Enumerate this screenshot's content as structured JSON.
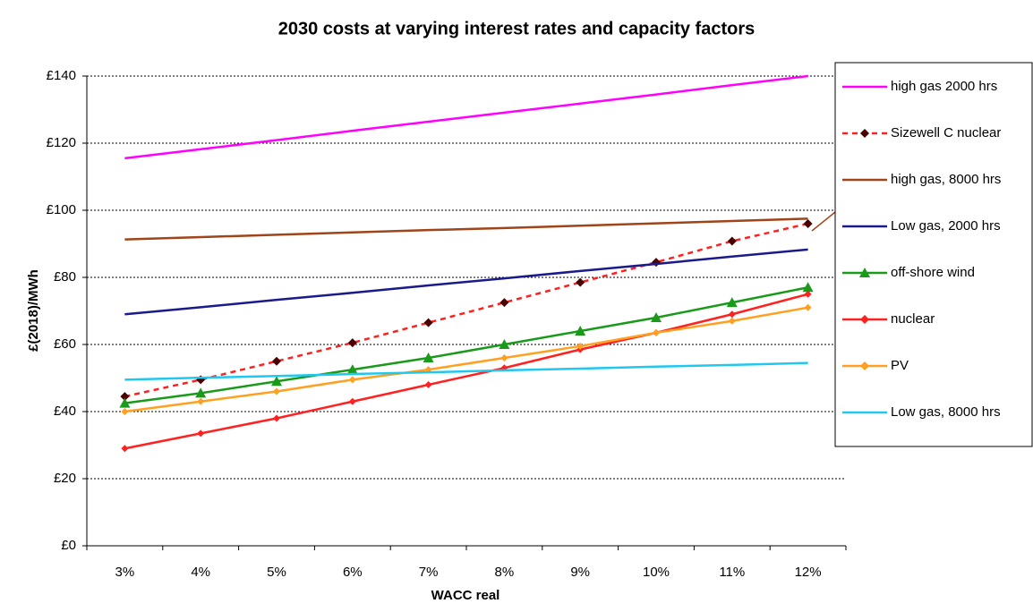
{
  "chart_data": {
    "type": "line",
    "title": "2030 costs at varying interest rates and capacity factors",
    "xlabel": "WACC real",
    "ylabel": "£(2018)/MWh",
    "categories": [
      "3%",
      "4%",
      "5%",
      "6%",
      "7%",
      "8%",
      "9%",
      "10%",
      "11%",
      "12%"
    ],
    "ylim": [
      0,
      140
    ],
    "yticks": [
      {
        "value": 0,
        "label": "£0"
      },
      {
        "value": 20,
        "label": "£20"
      },
      {
        "value": 40,
        "label": "£40"
      },
      {
        "value": 60,
        "label": "£60"
      },
      {
        "value": 80,
        "label": "£80"
      },
      {
        "value": 100,
        "label": "£100"
      },
      {
        "value": 120,
        "label": "£120"
      },
      {
        "value": 140,
        "label": "£140"
      }
    ],
    "grid": true,
    "legend": "right",
    "series": [
      {
        "name": "high gas 2000 hrs",
        "color": "#ff00ff",
        "marker": "none",
        "dash": "solid",
        "values": [
          115.5,
          118.2,
          120.9,
          123.7,
          126.4,
          129.1,
          131.8,
          134.5,
          137.3,
          140
        ]
      },
      {
        "name": "Sizewell C nuclear",
        "color": "#ff2020",
        "marker": "diamond",
        "marker_color": "#4a0000",
        "dash": "dashed",
        "values": [
          44.5,
          49.5,
          55,
          60.5,
          66.5,
          72.5,
          78.5,
          84.5,
          90.8,
          96
        ]
      },
      {
        "name": "high gas, 8000 hrs",
        "color": "#a0441a",
        "marker": "none",
        "dash": "solid",
        "values": [
          91.3,
          92,
          92.7,
          93.4,
          94.1,
          94.7,
          95.4,
          96.1,
          96.8,
          97.5
        ]
      },
      {
        "name": "Low gas, 2000 hrs",
        "color": "#1a1a8c",
        "marker": "none",
        "dash": "solid",
        "values": [
          69,
          71.1,
          73.3,
          75.4,
          77.6,
          79.7,
          81.9,
          84,
          86.2,
          88.3
        ]
      },
      {
        "name": "off-shore wind",
        "color": "#1a9a1a",
        "marker": "triangle",
        "marker_color": "#1a9a1a",
        "dash": "solid",
        "values": [
          42.5,
          45.5,
          49,
          52.5,
          56,
          60,
          64,
          68,
          72.5,
          77
        ]
      },
      {
        "name": "nuclear",
        "color": "#ff2020",
        "marker": "small",
        "marker_color": "#ff2020",
        "dash": "solid",
        "values": [
          29,
          33.5,
          38,
          43,
          48,
          53,
          58.5,
          63.5,
          69,
          75
        ]
      },
      {
        "name": "PV",
        "color": "#ffa020",
        "marker": "small",
        "marker_color": "#ffa020",
        "dash": "solid",
        "values": [
          40,
          43,
          46,
          49.5,
          52.5,
          56,
          59.5,
          63.5,
          67,
          71
        ]
      },
      {
        "name": "Low gas, 8000 hrs",
        "color": "#20c8f0",
        "marker": "none",
        "dash": "solid",
        "values": [
          49.5,
          50.1,
          50.6,
          51.2,
          51.7,
          52.3,
          52.8,
          53.4,
          53.9,
          54.5
        ]
      }
    ]
  }
}
